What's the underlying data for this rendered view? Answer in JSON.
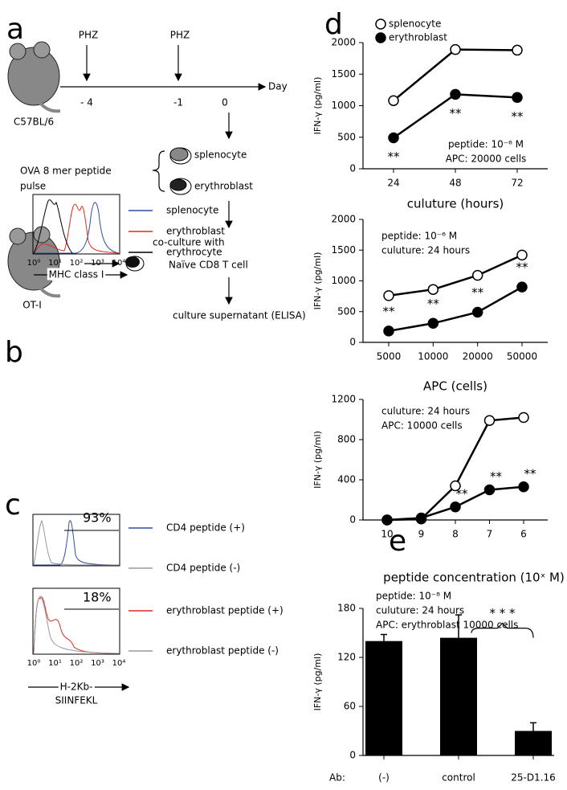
{
  "panel_a": {
    "label": "a",
    "strain": "C57BL/6",
    "transgenic": "OT-I",
    "drugs": [
      "PHZ",
      "PHZ"
    ],
    "axis_label": "Day",
    "days": [
      "- 4",
      "-1",
      "0"
    ],
    "pulse": [
      "OVA 8 mer peptide",
      "pulse"
    ],
    "cells": [
      "splenocyte",
      "erythroblast"
    ],
    "coculture": "co-culture with",
    "naive": "Naïve CD8 T cell",
    "result": "culture supernatant (ELISA)"
  },
  "panel_b": {
    "label": "b",
    "legend": [
      {
        "name": "splenocyte",
        "color": "#2a4ea0"
      },
      {
        "name": "erythroblast",
        "color": "#e02a20"
      },
      {
        "name": "erythrocyte",
        "color": "#000000"
      }
    ],
    "xticks": [
      "10⁰",
      "10¹",
      "10²",
      "10³",
      "10⁴"
    ],
    "xlabel": "MHC class I"
  },
  "panel_c": {
    "label": "c",
    "top": {
      "percent": "93%",
      "legend": [
        {
          "name": "CD4 peptide (+)",
          "color": "#2a4ea0"
        },
        {
          "name": "CD4 peptide (-)",
          "color": "#999999"
        }
      ]
    },
    "bottom": {
      "percent": "18%",
      "legend": [
        {
          "name": "erythroblast peptide (+)",
          "color": "#e02a20"
        },
        {
          "name": "erythroblast peptide (-)",
          "color": "#999999"
        }
      ]
    },
    "xticks": [
      "10⁰",
      "10¹",
      "10²",
      "10³",
      "10⁴"
    ],
    "xlabel": [
      "H-2Kb-",
      "SIINFEKL"
    ]
  },
  "chart_data": [
    {
      "type": "line",
      "label": "d",
      "xlabel": "culuture (hours)",
      "ylabel": "IFN-γ (pg/ml)",
      "categories": [
        "24",
        "48",
        "72"
      ],
      "ylim": [
        0,
        2000
      ],
      "yticks": [
        0,
        500,
        1000,
        1500,
        2000
      ],
      "annotations": [
        "peptide: 10⁻⁶ M",
        "APC: 20000 cells"
      ],
      "series": [
        {
          "name": "splenocyte",
          "color": "#ffffff",
          "values": [
            1080,
            1890,
            1880
          ]
        },
        {
          "name": "erythroblast",
          "color": "#000000",
          "values": [
            490,
            1180,
            1130
          ],
          "point_labels": [
            "**",
            "**",
            "**"
          ]
        }
      ]
    },
    {
      "type": "line",
      "xlabel": "APC (cells)",
      "ylabel": "IFN-γ (pg/ml)",
      "categories": [
        "5000",
        "10000",
        "20000",
        "50000"
      ],
      "ylim": [
        0,
        2000
      ],
      "yticks": [
        0,
        500,
        1000,
        1500,
        2000
      ],
      "annotations": [
        "peptide: 10⁻⁶ M",
        "culuture: 24 hours"
      ],
      "series": [
        {
          "color": "#ffffff",
          "values": [
            760,
            860,
            1090,
            1420
          ]
        },
        {
          "color": "#000000",
          "values": [
            185,
            310,
            490,
            900
          ],
          "point_labels": [
            "**",
            "**",
            "**",
            "**"
          ]
        }
      ]
    },
    {
      "type": "line",
      "xlabel": "peptide concentration (10ˣ M)",
      "ylabel": "IFN-γ (pg/ml)",
      "categories": [
        "10",
        "9",
        "8",
        "7",
        "6"
      ],
      "ylim": [
        0,
        1200
      ],
      "yticks": [
        0,
        400,
        800,
        1200
      ],
      "annotations": [
        "culuture: 24 hours",
        "APC: 10000 cells"
      ],
      "series": [
        {
          "color": "#ffffff",
          "values": [
            0,
            10,
            340,
            990,
            1020
          ]
        },
        {
          "color": "#000000",
          "values": [
            0,
            20,
            130,
            300,
            330
          ],
          "point_labels": [
            null,
            null,
            "**",
            "**",
            "**"
          ]
        }
      ]
    },
    {
      "type": "bar",
      "label": "e",
      "ylabel": "IFN-γ (pg/ml)",
      "category_axis_label": "Ab:",
      "categories": [
        "(-)",
        "control",
        "25-D1.16"
      ],
      "values": [
        140,
        144,
        30
      ],
      "errors": [
        8,
        28,
        10
      ],
      "color": "#000000",
      "ylim": [
        0,
        180
      ],
      "yticks": [
        0,
        60,
        120,
        180
      ],
      "annotations": [
        "peptide: 10⁻⁸ M",
        "culuture: 24 hours",
        "APC: erythroblast 10000 cells"
      ],
      "significance": "* * *"
    }
  ]
}
